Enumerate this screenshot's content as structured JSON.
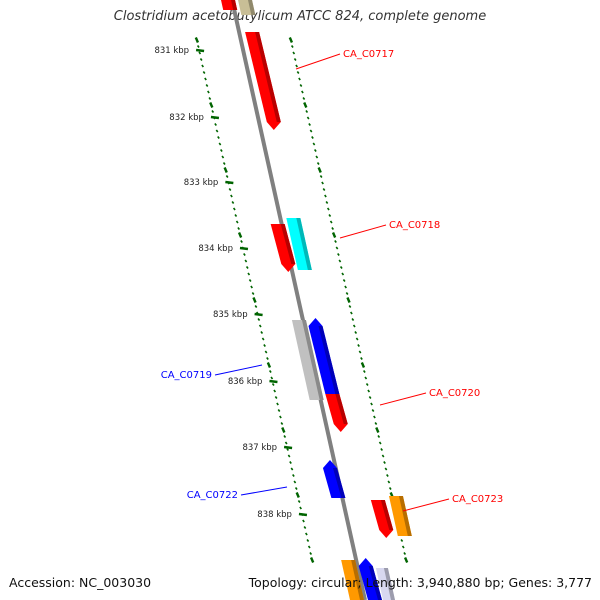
{
  "title": "Clostridium acetobutylicum ATCC 824, complete genome",
  "accession": "Accession: NC_003030",
  "topology": "Topology: circular; Length: 3,940,880 bp; Genes: 3,777",
  "ticks": [
    "831 kbp",
    "832 kbp",
    "833 kbp",
    "834 kbp",
    "835 kbp",
    "836 kbp",
    "837 kbp",
    "838 kbp"
  ],
  "genes": [
    {
      "label": "CA_C0717",
      "color": "#ff0000"
    },
    {
      "label": "CA_C0718",
      "color": "#ff0000"
    },
    {
      "label": "CA_C0719",
      "color": "#0000ff"
    },
    {
      "label": "CA_C0720",
      "color": "#ff0000"
    },
    {
      "label": "CA_C0722",
      "color": "#0000ff"
    },
    {
      "label": "CA_C0723",
      "color": "#ff0000"
    }
  ],
  "colors": {
    "backbone": "#808080",
    "tick": "#006400",
    "red": "#ff0000",
    "cyan": "#00ffff",
    "blue": "#0000ff",
    "gray": "#c0c0c0",
    "orange": "#ff9900",
    "olive": "#c8be96"
  }
}
